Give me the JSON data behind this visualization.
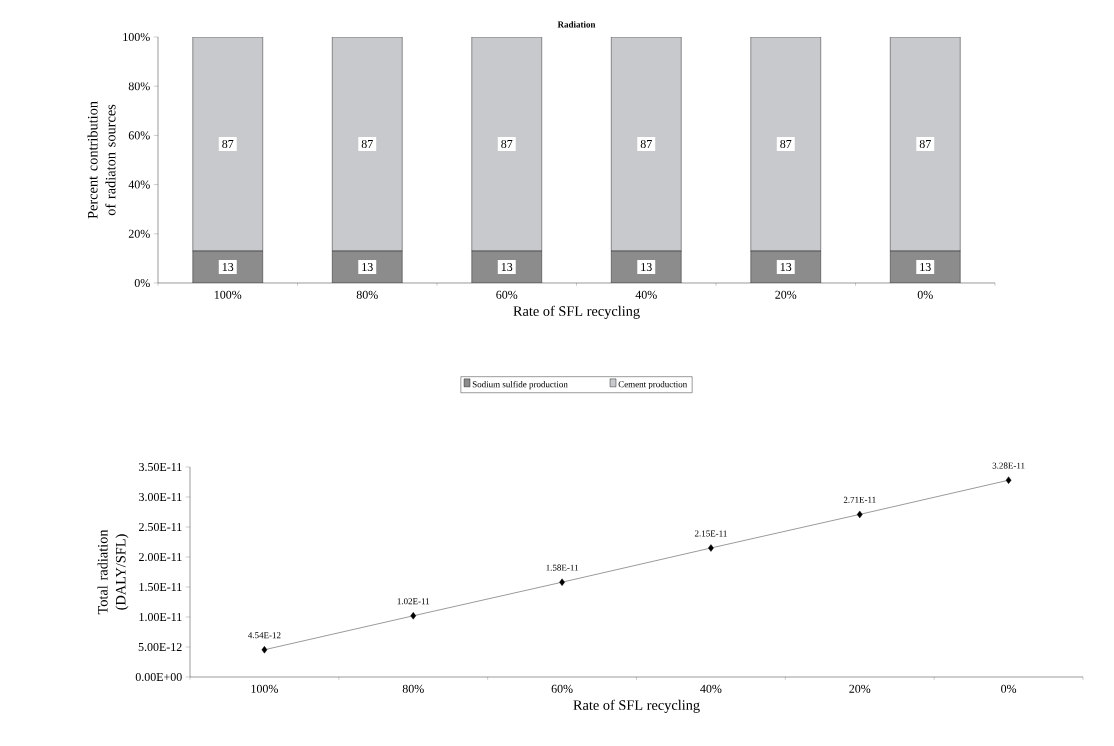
{
  "chart_data": [
    {
      "type": "bar",
      "title": "Radiation",
      "xlabel": "Rate of SFL recycling",
      "ylabel": "Percent contribution of radiaton sources",
      "categories": [
        "100%",
        "80%",
        "60%",
        "40%",
        "20%",
        "0%"
      ],
      "series": [
        {
          "name": "Sodium sulfide production",
          "color": "#8c8c8c",
          "values": [
            13,
            13,
            13,
            13,
            13,
            13
          ]
        },
        {
          "name": "Cement production",
          "color": "#c8c9cc",
          "values": [
            87,
            87,
            87,
            87,
            87,
            87
          ]
        }
      ],
      "stacked": true,
      "data_labels": true,
      "legend": "bottom",
      "ylim": [
        0,
        100
      ],
      "yticks": [
        {
          "value": 0,
          "label": "0%"
        },
        {
          "value": 20,
          "label": "20%"
        },
        {
          "value": 40,
          "label": "40%"
        },
        {
          "value": 60,
          "label": "60%"
        },
        {
          "value": 80,
          "label": "80%"
        },
        {
          "value": 100,
          "label": "100%"
        }
      ]
    },
    {
      "type": "line",
      "xlabel": "Rate of SFL recycling",
      "ylabel": "Total radiation (DALY/SFL)",
      "categories": [
        "100%",
        "80%",
        "60%",
        "40%",
        "20%",
        "0%"
      ],
      "values": [
        4.54e-12,
        1.02e-11,
        1.58e-11,
        2.15e-11,
        2.71e-11,
        3.28e-11
      ],
      "value_labels": [
        "4.54E-12",
        "1.02E-11",
        "1.58E-11",
        "2.15E-11",
        "2.71E-11",
        "3.28E-11"
      ],
      "color": "#000000",
      "marker": "diamond",
      "line_style": "solid",
      "ylim": [
        0,
        3.5e-11
      ],
      "yticks": [
        {
          "value": 0,
          "label": "0.00E+00"
        },
        {
          "value": 5e-12,
          "label": "5.00E-12"
        },
        {
          "value": 1e-11,
          "label": "1.00E-11"
        },
        {
          "value": 1.5e-11,
          "label": "1.50E-11"
        },
        {
          "value": 2e-11,
          "label": "2.00E-11"
        },
        {
          "value": 2.5e-11,
          "label": "2.50E-11"
        },
        {
          "value": 3e-11,
          "label": "3.00E-11"
        },
        {
          "value": 3.5e-11,
          "label": "3.50E-11"
        }
      ]
    }
  ]
}
